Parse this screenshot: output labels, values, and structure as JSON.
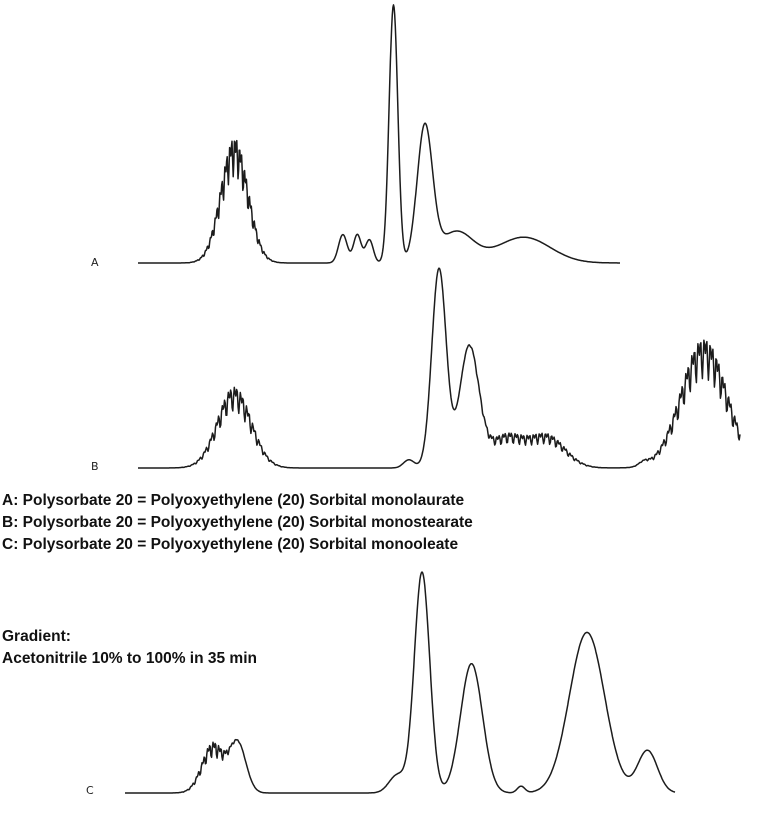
{
  "legend": [
    "A: Polysorbate 20 = Polyoxyethylene (20) Sorbital monolaurate",
    "B: Polysorbate 20 = Polyoxyethylene (20) Sorbital monostearate",
    "C: Polysorbate 20 = Polyoxyethylene (20) Sorbital monooleate"
  ],
  "gradient": {
    "title": "Gradient:",
    "description": "Acetonitrile 10% to 100% in 35 min"
  },
  "chart_data": {
    "type": "line",
    "title": "",
    "xlabel": "",
    "ylabel": "",
    "axes_shown": false,
    "grid": false,
    "traces": [
      {
        "label": "A",
        "color": "#222222",
        "x_range": [
          0,
          100
        ],
        "baseline": 0,
        "peaks": [
          {
            "x": 20,
            "height": 0.43,
            "width": 2.8,
            "noise": true
          },
          {
            "x": 42.5,
            "height": 0.11,
            "width": 0.9
          },
          {
            "x": 45.5,
            "height": 0.11,
            "width": 0.8
          },
          {
            "x": 48,
            "height": 0.09,
            "width": 0.8
          },
          {
            "x": 53,
            "height": 1.0,
            "width": 0.9
          },
          {
            "x": 59.5,
            "height": 0.52,
            "width": 1.6
          },
          {
            "x": 66,
            "height": 0.12,
            "width": 3.5
          },
          {
            "x": 80,
            "height": 0.1,
            "width": 5.5
          }
        ]
      },
      {
        "label": "B",
        "color": "#222222",
        "x_range": [
          0,
          100
        ],
        "baseline": 0,
        "peaks": [
          {
            "x": 16,
            "height": 0.35,
            "width": 2.8,
            "noise": true
          },
          {
            "x": 45,
            "height": 0.04,
            "width": 0.9
          },
          {
            "x": 50,
            "height": 0.97,
            "width": 1.2
          },
          {
            "x": 55,
            "height": 0.58,
            "width": 1.6
          },
          {
            "x": 61,
            "height": 0.14,
            "width": 3,
            "noise": true
          },
          {
            "x": 68,
            "height": 0.14,
            "width": 3,
            "noise": true
          },
          {
            "x": 84,
            "height": 0.02,
            "width": 0.8
          },
          {
            "x": 94,
            "height": 0.56,
            "width": 3.8,
            "noise": true
          }
        ]
      },
      {
        "label": "C",
        "color": "#222222",
        "x_range": [
          0,
          100
        ],
        "baseline": 0,
        "peaks": [
          {
            "x": 16,
            "height": 0.2,
            "width": 2.0,
            "noise": true
          },
          {
            "x": 20.5,
            "height": 0.22,
            "width": 1.5
          },
          {
            "x": 49.5,
            "height": 0.08,
            "width": 1.5
          },
          {
            "x": 54,
            "height": 0.99,
            "width": 1.4
          },
          {
            "x": 63,
            "height": 0.58,
            "width": 2.0
          },
          {
            "x": 72,
            "height": 0.03,
            "width": 0.7
          },
          {
            "x": 84,
            "height": 0.72,
            "width": 3.2
          },
          {
            "x": 95,
            "height": 0.19,
            "width": 1.8
          }
        ]
      }
    ]
  }
}
